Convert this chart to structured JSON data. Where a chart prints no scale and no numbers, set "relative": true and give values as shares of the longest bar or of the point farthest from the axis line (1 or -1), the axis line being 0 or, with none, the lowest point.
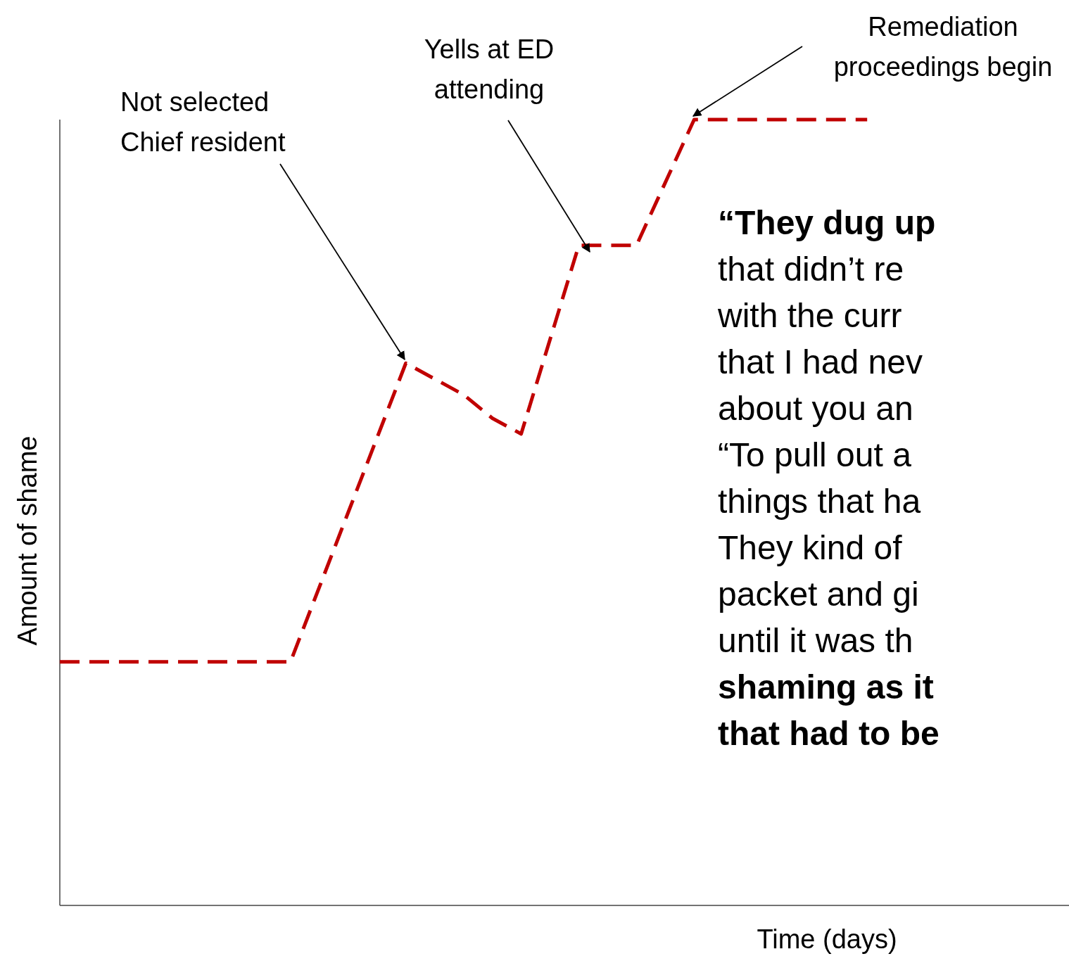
{
  "chart_data": {
    "type": "line",
    "relative": true,
    "xlabel": "Time (days)",
    "ylabel": "Amount of shame",
    "line_style": "dashed",
    "categories": [
      null,
      null,
      null,
      null,
      null,
      null,
      null,
      null,
      null,
      null,
      null,
      null,
      null,
      null,
      null,
      null,
      null,
      null,
      null,
      null,
      null,
      null,
      null,
      null,
      null,
      null,
      null,
      null,
      null,
      null,
      null,
      null,
      null,
      null,
      null,
      null
    ],
    "series": [
      {
        "color": "#c00000",
        "values": [
          0.31,
          0.31,
          0.31,
          0.31,
          0.31,
          0.31,
          0.31,
          0.31,
          0.31,
          0.405,
          0.5,
          0.595,
          0.69,
          0.67,
          0.65,
          0.62,
          0.6,
          0.72,
          0.84,
          0.84,
          0.84,
          0.92,
          1,
          1,
          1,
          1,
          1,
          1,
          1,
          null,
          null,
          null,
          null,
          null,
          null,
          null
        ]
      }
    ],
    "annotations": [
      "Not selected\nChief resident",
      "Yells at ED\nattending",
      "Remediation\nproceedings begin",
      "“They dug up",
      "that didn’t re",
      "with the curr",
      "that I had nev",
      "about you an",
      "“To pull out a",
      "things that ha",
      "They kind of",
      "packet and gi",
      "until it was th",
      "shaming as it",
      "that had to be"
    ]
  }
}
